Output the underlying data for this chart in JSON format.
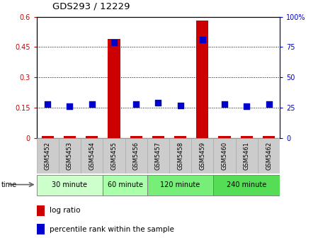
{
  "title": "GDS293 / 12229",
  "samples": [
    "GSM5452",
    "GSM5453",
    "GSM5454",
    "GSM5455",
    "GSM5456",
    "GSM5457",
    "GSM5458",
    "GSM5459",
    "GSM5460",
    "GSM5461",
    "GSM5462"
  ],
  "log_ratio": [
    0.01,
    0.01,
    0.01,
    0.49,
    0.01,
    0.01,
    0.01,
    0.58,
    0.01,
    0.01,
    0.01
  ],
  "percentile_rank": [
    28,
    26,
    28,
    79,
    28,
    29,
    27,
    81,
    28,
    26,
    28
  ],
  "ylim_left": [
    0,
    0.6
  ],
  "ylim_right": [
    0,
    100
  ],
  "yticks_left": [
    0,
    0.15,
    0.3,
    0.45,
    0.6
  ],
  "ytick_labels_left": [
    "0",
    "0.15",
    "0.3",
    "0.45",
    "0.6"
  ],
  "yticks_right": [
    0,
    25,
    50,
    75,
    100
  ],
  "ytick_labels_right": [
    "0",
    "25",
    "50",
    "75",
    "100%"
  ],
  "groups": [
    {
      "label": "30 minute",
      "samples": [
        "GSM5452",
        "GSM5453",
        "GSM5454"
      ],
      "color": "#ccffcc"
    },
    {
      "label": "60 minute",
      "samples": [
        "GSM5455",
        "GSM5456"
      ],
      "color": "#aaffaa"
    },
    {
      "label": "120 minute",
      "samples": [
        "GSM5457",
        "GSM5458",
        "GSM5459"
      ],
      "color": "#77ee77"
    },
    {
      "label": "240 minute",
      "samples": [
        "GSM5460",
        "GSM5461",
        "GSM5462"
      ],
      "color": "#55dd55"
    }
  ],
  "bar_color": "#cc0000",
  "dot_color": "#0000cc",
  "bar_width": 0.55,
  "dot_size": 40,
  "legend_items": [
    "log ratio",
    "percentile rank within the sample"
  ],
  "left_color": "#cc0000",
  "right_color": "#0000cc",
  "sample_box_color": "#cccccc",
  "sample_box_edge": "#aaaaaa",
  "time_label": "time",
  "time_arrow_color": "#666666"
}
